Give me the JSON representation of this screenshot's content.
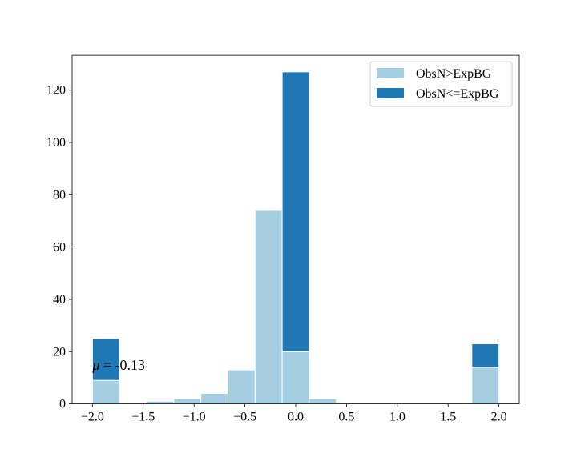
{
  "chart_data": {
    "type": "bar",
    "stacked": true,
    "bin_edges": [
      -2.0,
      -1.7333,
      -1.4667,
      -1.2,
      -0.9333,
      -0.6667,
      -0.4,
      -0.1333,
      0.1333,
      0.4,
      0.6667,
      0.9333,
      1.2,
      1.4667,
      1.7333,
      2.0
    ],
    "series": [
      {
        "name": "ObsN>ExpBG",
        "color": "#a6cee3",
        "values": [
          9,
          0,
          1,
          2,
          4,
          13,
          74,
          20,
          2,
          0,
          0,
          0,
          0,
          0,
          14
        ]
      },
      {
        "name": "ObsN<=ExpBG",
        "color": "#1f78b4",
        "values": [
          16,
          0,
          0,
          0,
          0,
          0,
          0,
          107,
          0,
          0,
          0,
          0,
          0,
          0,
          9
        ]
      }
    ],
    "xlim": [
      -2.2,
      2.2
    ],
    "ylim": [
      0,
      133.35
    ],
    "x_ticks": [
      -2.0,
      -1.5,
      -1.0,
      -0.5,
      0.0,
      0.5,
      1.0,
      1.5,
      2.0
    ],
    "x_tick_labels": [
      "−2.0",
      "−1.5",
      "−1.0",
      "−0.5",
      "0.0",
      "0.5",
      "1.0",
      "1.5",
      "2.0"
    ],
    "y_ticks": [
      0,
      20,
      40,
      60,
      80,
      100,
      120
    ],
    "y_tick_labels": [
      "0",
      "20",
      "40",
      "60",
      "80",
      "100",
      "120"
    ],
    "legend_position": "upper-right",
    "grid": false,
    "annotation": {
      "symbol": "μ",
      "text": " = -0.13",
      "x": -2.0,
      "y": 13
    }
  }
}
